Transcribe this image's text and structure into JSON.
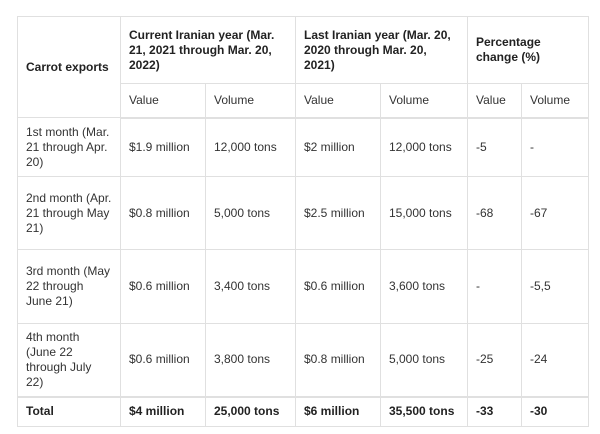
{
  "header": {
    "row_label": "Carrot exports",
    "groups": [
      "Current Iranian year (Mar. 21, 2021 through Mar. 20, 2022)",
      "Last Iranian year (Mar. 20, 2020 through Mar. 20, 2021)",
      "Percentage change (%)"
    ],
    "subheaders": [
      "Value",
      "Volume",
      "Value",
      "Volume",
      "Value",
      "Volume"
    ]
  },
  "rows": [
    {
      "label": "1st month (Mar. 21 through Apr. 20)",
      "cells": [
        "$1.9 million",
        "12,000 tons",
        "$2 million",
        "12,000 tons",
        "-5",
        "-"
      ]
    },
    {
      "label": "2nd month (Apr. 21 through May 21)",
      "cells": [
        "$0.8 million",
        "5,000 tons",
        "$2.5 million",
        "15,000 tons",
        "-68",
        "-67"
      ]
    },
    {
      "label": "3rd month (May 22 through June 21)",
      "cells": [
        "$0.6 million",
        "3,400 tons",
        "$0.6 million",
        "3,600 tons",
        "-",
        "-5,5"
      ]
    },
    {
      "label": "4th month (June 22 through July 22)",
      "cells": [
        "$0.6 million",
        "3,800 tons",
        "$0.8 million",
        "5,000 tons",
        "-25",
        "-24"
      ]
    }
  ],
  "total": {
    "label": "Total",
    "cells": [
      "$4 million",
      "25,000 tons",
      "$6 million",
      "35,500 tons",
      "-33",
      "-30"
    ]
  }
}
